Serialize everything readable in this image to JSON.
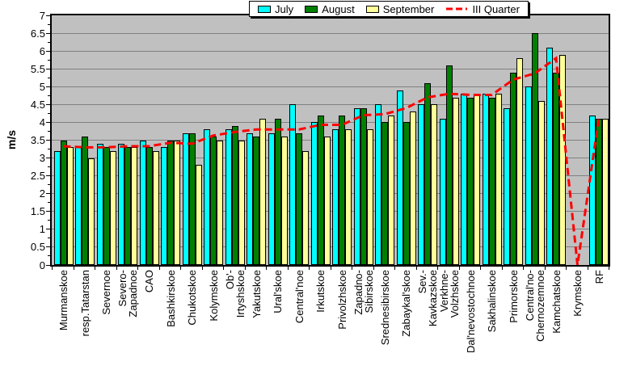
{
  "chart_data": {
    "type": "bar",
    "title": "",
    "xlabel": "",
    "ylabel": "m/s",
    "ylim": [
      0,
      7
    ],
    "ytick_step": 0.5,
    "grid": true,
    "legend_position": "top",
    "plot_bg_color": "#c0c0c0",
    "gridline_color": "#808080",
    "categories": [
      "Murmanskoe",
      "resp.Tatarstan",
      "Severnoe",
      "Severo-Zapadnoe",
      "CAO",
      "Bashkirskoe",
      "Chukotskoe",
      "Kolymskoe",
      "Ob'-Irtyshskoe",
      "Yakutskoe",
      "Ural'skoe",
      "Central'noe",
      "Irkutskoe",
      "Privolzhskoe",
      "Zapadno-Sibirskoe",
      "Srednesibirskoe",
      "Zabaykal'skoe",
      "Sev.-Kavkazskoe",
      "Verkhne-Volzhskoe",
      "Dal'nevostochnoe",
      "Sakhalinskoe",
      "Primorskoe",
      "Central'no-Chernozemnoe",
      "Kamchatskoe",
      "Krymskoe",
      "RF"
    ],
    "category_label_lines": [
      [
        "Murmanskoe"
      ],
      [
        "resp.Tatarstan"
      ],
      [
        "Severnoe"
      ],
      [
        "Severo-",
        "Zapadnoe"
      ],
      [
        "CAO"
      ],
      [
        "Bashkirskoe"
      ],
      [
        "Chukotskoe"
      ],
      [
        "Kolymskoe"
      ],
      [
        "Ob'-",
        "Irtyshskoe"
      ],
      [
        "Yakutskoe"
      ],
      [
        "Ural'skoe"
      ],
      [
        "Central'noe"
      ],
      [
        "Irkutskoe"
      ],
      [
        "Privolzhskoe"
      ],
      [
        "Zapadno-",
        "Sibirskoe"
      ],
      [
        "Srednesibirskoe"
      ],
      [
        "Zabaykal'skoe"
      ],
      [
        "Sev.-",
        "Kavkazskoe"
      ],
      [
        "Verkhne-",
        "Volzhskoe"
      ],
      [
        "Dal'nevostochnoe"
      ],
      [
        "Sakhalinskoe"
      ],
      [
        "Primorskoe"
      ],
      [
        "Central'no-",
        "Chernozemnoe"
      ],
      [
        "Kamchatskoe"
      ],
      [
        "Krymskoe"
      ],
      [
        "RF"
      ]
    ],
    "series": [
      {
        "name": "July",
        "type": "bar",
        "color": "#00ffff",
        "values": [
          3.2,
          3.3,
          3.4,
          3.4,
          3.5,
          3.3,
          3.7,
          3.8,
          3.8,
          3.7,
          3.7,
          4.5,
          4.0,
          3.8,
          4.4,
          4.5,
          4.9,
          4.5,
          4.1,
          4.8,
          4.8,
          4.4,
          5.0,
          6.1,
          0,
          4.2
        ]
      },
      {
        "name": "August",
        "type": "bar",
        "color": "#008000",
        "values": [
          3.5,
          3.6,
          3.3,
          3.3,
          3.3,
          3.5,
          3.7,
          3.6,
          3.9,
          3.6,
          4.1,
          3.7,
          4.2,
          4.2,
          4.4,
          4.0,
          4.0,
          5.1,
          5.6,
          4.7,
          4.7,
          5.4,
          6.5,
          5.4,
          0,
          4.1
        ]
      },
      {
        "name": "September",
        "type": "bar",
        "color": "#ffff99",
        "values": [
          3.3,
          3.0,
          3.2,
          3.3,
          3.2,
          3.5,
          2.8,
          3.5,
          3.5,
          4.1,
          3.6,
          3.2,
          3.6,
          3.8,
          3.8,
          4.2,
          4.3,
          4.5,
          4.7,
          4.8,
          4.8,
          5.8,
          4.6,
          5.9,
          0,
          4.1
        ]
      },
      {
        "name": "III Quarter",
        "type": "line",
        "color": "#ff0000",
        "dash": true,
        "values": [
          3.33,
          3.3,
          3.3,
          3.33,
          3.33,
          3.43,
          3.4,
          3.63,
          3.73,
          3.8,
          3.8,
          3.8,
          3.93,
          3.93,
          4.2,
          4.23,
          4.4,
          4.7,
          4.8,
          4.77,
          4.77,
          5.2,
          5.37,
          5.8,
          0,
          4.13
        ]
      }
    ],
    "ytick_labels": [
      "0",
      "0.5",
      "1",
      "1.5",
      "2",
      "2.5",
      "3",
      "3.5",
      "4",
      "4.5",
      "5",
      "5.5",
      "6",
      "6.5",
      "7"
    ]
  }
}
